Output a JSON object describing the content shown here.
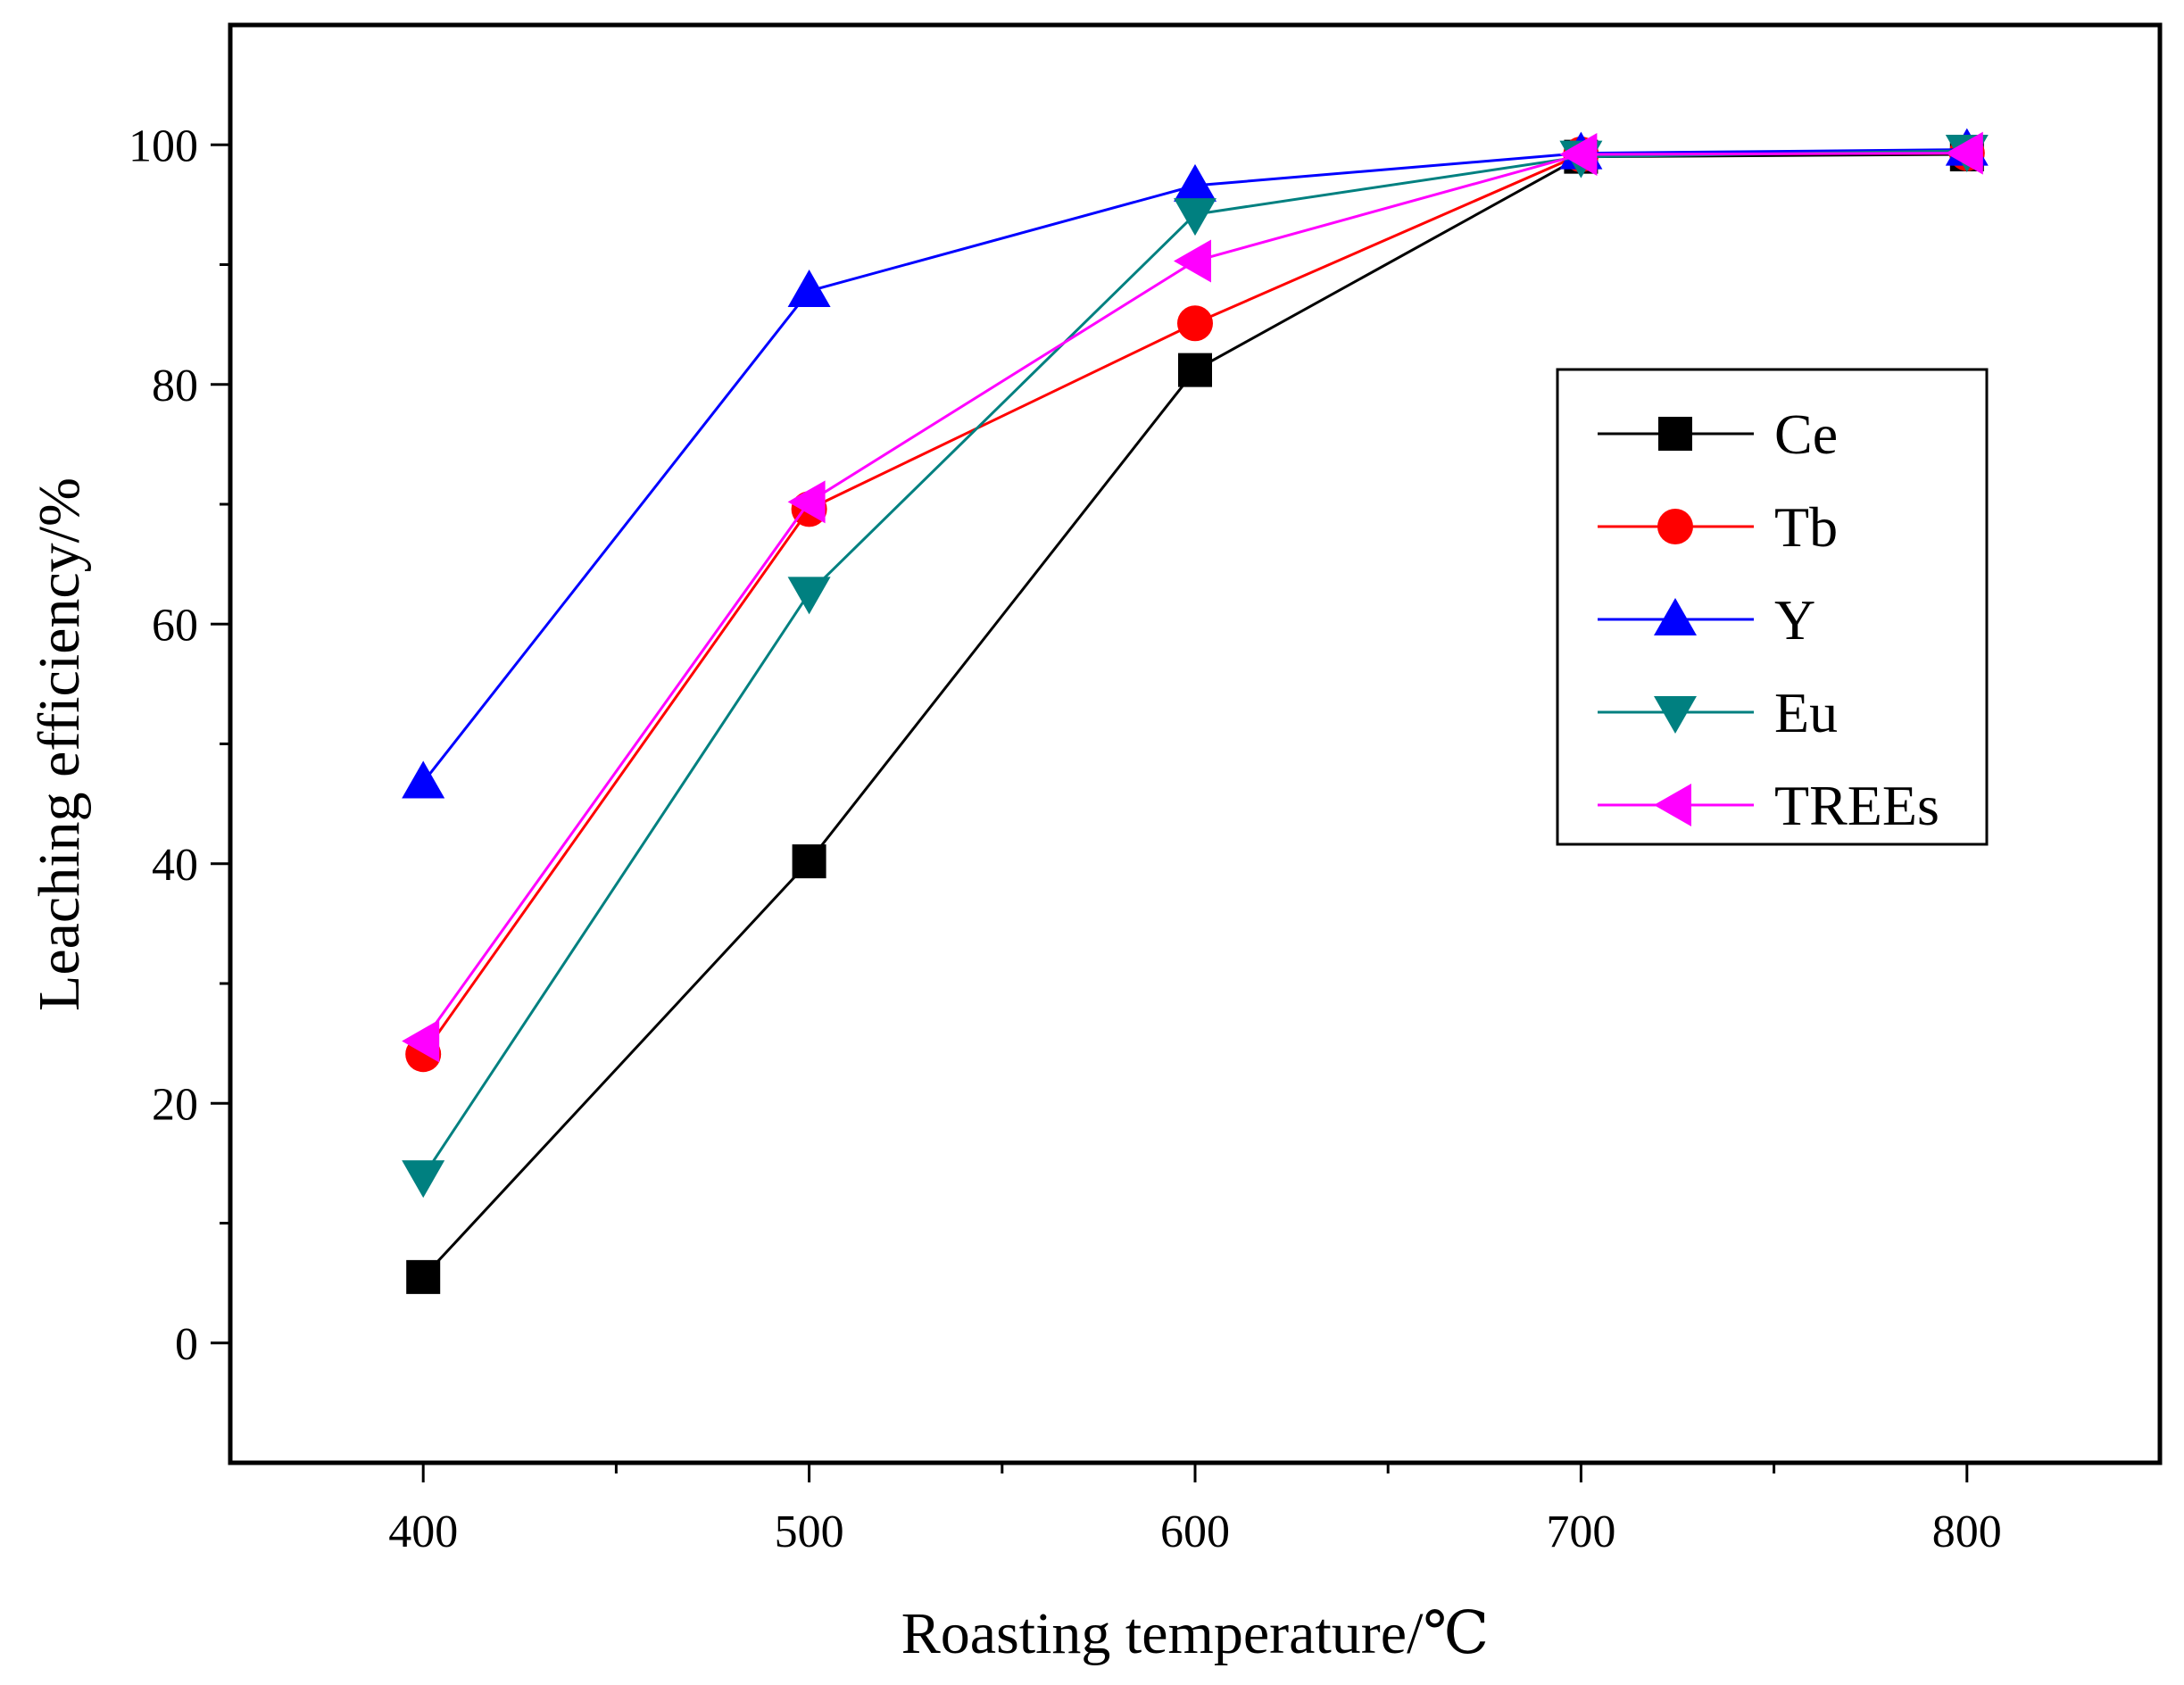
{
  "chart_data": {
    "type": "line",
    "title": "",
    "xlabel": "Roasting temperature/℃",
    "ylabel": "Leaching efficiency/%",
    "x": [
      400,
      500,
      600,
      700,
      800
    ],
    "xlim": [
      350,
      850
    ],
    "ylim": [
      -10,
      110
    ],
    "xticks": [
      400,
      500,
      600,
      700,
      800
    ],
    "yticks": [
      0,
      20,
      40,
      60,
      80,
      100
    ],
    "grid": false,
    "legend_position": "right",
    "series": [
      {
        "name": "Ce",
        "color": "#000000",
        "marker": "square",
        "values": [
          5.5,
          40.2,
          81.2,
          99.0,
          99.2
        ]
      },
      {
        "name": "Tb",
        "color": "#ff0000",
        "marker": "circle",
        "values": [
          24.1,
          69.6,
          85.1,
          99.2,
          99.3
        ]
      },
      {
        "name": "Y",
        "color": "#0000ff",
        "marker": "triangle-up",
        "values": [
          46.8,
          87.8,
          96.6,
          99.3,
          99.6
        ]
      },
      {
        "name": "Eu",
        "color": "#008080",
        "marker": "triangle-down",
        "values": [
          13.9,
          62.6,
          94.2,
          99.0,
          99.5
        ]
      },
      {
        "name": "TREEs",
        "color": "#ff00ff",
        "marker": "triangle-left",
        "values": [
          25.2,
          70.2,
          90.3,
          99.2,
          99.3
        ]
      }
    ]
  }
}
